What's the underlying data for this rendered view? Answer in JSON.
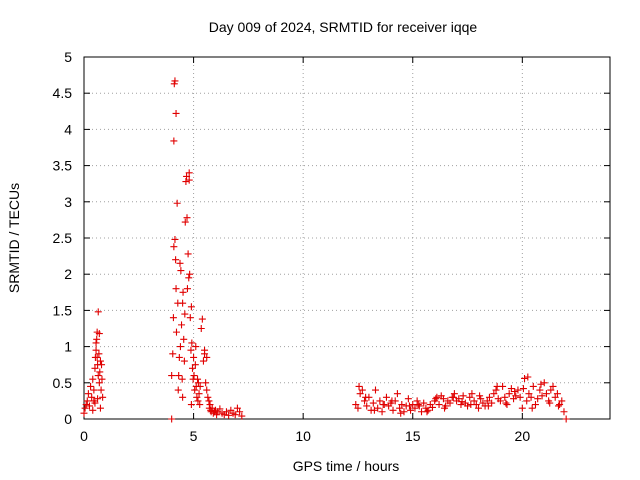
{
  "chart_data": {
    "type": "scatter",
    "title": "Day 009 of 2024, SRMTID for receiver iqqe",
    "xlabel": "GPS time / hours",
    "ylabel": "SRMTID / TECUs",
    "xlim": [
      0,
      24
    ],
    "ylim": [
      0,
      5
    ],
    "xticks": [
      0,
      5,
      10,
      15,
      20
    ],
    "xtick_labels": [
      "0",
      "5",
      "10",
      "15",
      "20"
    ],
    "yticks": [
      0,
      0.5,
      1,
      1.5,
      2,
      2.5,
      3,
      3.5,
      4,
      4.5,
      5
    ],
    "ytick_labels": [
      "0",
      "0.5",
      "1",
      "1.5",
      "2",
      "2.5",
      "3",
      "3.5",
      "4",
      "4.5",
      "5"
    ],
    "grid": true,
    "marker": "+",
    "series": [
      {
        "name": "SRMTID",
        "color": "#e00000",
        "x": [
          0.0,
          0.05,
          0.1,
          0.15,
          0.2,
          0.25,
          0.3,
          0.35,
          0.4,
          0.45,
          0.5,
          0.52,
          0.55,
          0.58,
          0.6,
          0.62,
          0.65,
          0.68,
          0.7,
          0.72,
          0.75,
          0.78,
          0.8,
          0.82,
          0.85,
          0.55,
          0.6,
          0.65,
          0.7,
          0.4,
          0.45,
          0.5,
          0.62,
          0.75,
          4.0,
          4.05,
          4.08,
          4.1,
          4.1,
          4.12,
          4.15,
          4.15,
          4.18,
          4.2,
          4.2,
          4.22,
          4.25,
          4.28,
          4.3,
          4.32,
          4.35,
          4.38,
          4.4,
          4.42,
          4.45,
          4.48,
          4.5,
          4.5,
          4.52,
          4.55,
          4.58,
          4.6,
          4.62,
          4.65,
          4.68,
          4.7,
          4.72,
          4.75,
          4.78,
          4.8,
          4.8,
          4.82,
          4.85,
          4.88,
          4.9,
          4.92,
          4.95,
          4.98,
          5.0,
          5.02,
          5.05,
          5.08,
          5.1,
          5.12,
          5.15,
          5.18,
          5.2,
          5.22,
          5.25,
          5.28,
          5.3,
          5.35,
          5.4,
          5.45,
          5.5,
          5.5,
          5.55,
          5.6,
          5.6,
          5.65,
          5.7,
          5.72,
          5.75,
          5.78,
          5.8,
          5.85,
          5.9,
          5.95,
          6.0,
          6.05,
          6.1,
          6.2,
          6.3,
          6.4,
          6.5,
          6.6,
          6.7,
          6.8,
          6.9,
          7.0,
          7.1,
          7.2,
          12.4,
          12.5,
          12.6,
          12.7,
          12.8,
          12.9,
          13.0,
          13.1,
          13.2,
          13.3,
          13.4,
          13.5,
          13.6,
          13.7,
          13.8,
          13.9,
          14.0,
          14.1,
          14.2,
          14.3,
          14.4,
          14.5,
          14.6,
          14.7,
          14.8,
          14.9,
          15.0,
          15.1,
          15.2,
          15.3,
          15.4,
          15.5,
          15.6,
          15.7,
          15.8,
          15.9,
          16.0,
          16.1,
          16.2,
          16.3,
          16.4,
          16.5,
          16.6,
          16.7,
          16.8,
          16.9,
          17.0,
          17.1,
          17.2,
          17.3,
          17.4,
          17.5,
          17.6,
          17.7,
          17.8,
          17.9,
          18.0,
          18.1,
          18.2,
          18.3,
          18.4,
          18.5,
          18.6,
          18.7,
          18.8,
          18.9,
          19.0,
          19.1,
          19.2,
          19.3,
          19.4,
          19.5,
          19.6,
          19.7,
          19.8,
          19.9,
          20.0,
          20.1,
          20.2,
          20.3,
          20.4,
          20.5,
          20.6,
          20.7,
          20.8,
          20.9,
          21.0,
          21.1,
          21.2,
          21.3,
          21.4,
          21.5,
          21.6,
          21.7,
          21.8,
          21.9,
          22.0,
          12.55,
          12.85,
          13.25,
          13.65,
          14.05,
          14.45,
          14.85,
          15.25,
          15.65,
          16.05,
          16.45,
          16.85,
          17.25,
          17.65,
          18.05,
          18.45,
          18.85,
          19.25,
          19.65,
          20.05,
          20.25,
          20.45,
          20.85,
          21.25,
          21.65,
          4.0,
          4.9
        ],
        "y": [
          0.08,
          0.15,
          0.2,
          0.25,
          0.35,
          0.18,
          0.45,
          0.3,
          0.55,
          0.25,
          0.7,
          0.85,
          0.95,
          1.1,
          1.2,
          0.75,
          0.6,
          0.9,
          0.5,
          0.65,
          0.8,
          0.4,
          0.75,
          0.55,
          0.3,
          1.05,
          0.85,
          1.48,
          1.18,
          0.12,
          0.4,
          0.22,
          0.28,
          0.15,
          0.6,
          0.9,
          1.4,
          3.84,
          2.38,
          4.63,
          2.48,
          4.67,
          2.2,
          4.22,
          1.8,
          1.2,
          2.98,
          1.6,
          0.4,
          0.6,
          0.85,
          2.15,
          1.0,
          2.05,
          1.3,
          0.55,
          1.6,
          0.3,
          1.75,
          1.1,
          0.8,
          1.45,
          2.72,
          3.28,
          3.35,
          2.78,
          1.8,
          2.28,
          1.95,
          3.3,
          3.4,
          2.0,
          1.4,
          0.95,
          1.55,
          1.05,
          0.7,
          0.55,
          0.85,
          0.6,
          0.4,
          0.75,
          1.0,
          0.45,
          0.3,
          0.55,
          0.25,
          0.5,
          0.35,
          0.2,
          0.45,
          1.25,
          1.38,
          0.8,
          0.95,
          0.9,
          0.5,
          0.85,
          0.4,
          0.3,
          0.25,
          0.15,
          0.2,
          0.12,
          0.1,
          0.15,
          0.08,
          0.1,
          0.12,
          0.06,
          0.1,
          0.14,
          0.08,
          0.06,
          0.1,
          0.05,
          0.12,
          0.08,
          0.06,
          0.15,
          0.1,
          0.04,
          0.2,
          0.15,
          0.35,
          0.4,
          0.25,
          0.18,
          0.3,
          0.12,
          0.22,
          0.4,
          0.15,
          0.25,
          0.1,
          0.2,
          0.3,
          0.18,
          0.22,
          0.12,
          0.25,
          0.35,
          0.15,
          0.2,
          0.1,
          0.18,
          0.28,
          0.12,
          0.2,
          0.15,
          0.25,
          0.18,
          0.1,
          0.22,
          0.15,
          0.12,
          0.2,
          0.16,
          0.25,
          0.3,
          0.2,
          0.32,
          0.28,
          0.18,
          0.25,
          0.22,
          0.3,
          0.35,
          0.25,
          0.28,
          0.2,
          0.32,
          0.22,
          0.18,
          0.3,
          0.35,
          0.25,
          0.2,
          0.15,
          0.28,
          0.22,
          0.18,
          0.25,
          0.3,
          0.22,
          0.35,
          0.4,
          0.28,
          0.25,
          0.45,
          0.3,
          0.2,
          0.35,
          0.42,
          0.28,
          0.32,
          0.4,
          0.3,
          0.15,
          0.56,
          0.25,
          0.35,
          0.3,
          0.45,
          0.2,
          0.28,
          0.4,
          0.32,
          0.5,
          0.35,
          0.25,
          0.4,
          0.45,
          0.3,
          0.35,
          0.2,
          0.25,
          0.1,
          0.0,
          0.45,
          0.3,
          0.12,
          0.2,
          0.25,
          0.08,
          0.18,
          0.2,
          0.1,
          0.28,
          0.15,
          0.3,
          0.24,
          0.2,
          0.32,
          0.18,
          0.45,
          0.22,
          0.38,
          0.42,
          0.58,
          0.15,
          0.48,
          0.22,
          0.18,
          0.0,
          0.2
        ]
      }
    ]
  }
}
